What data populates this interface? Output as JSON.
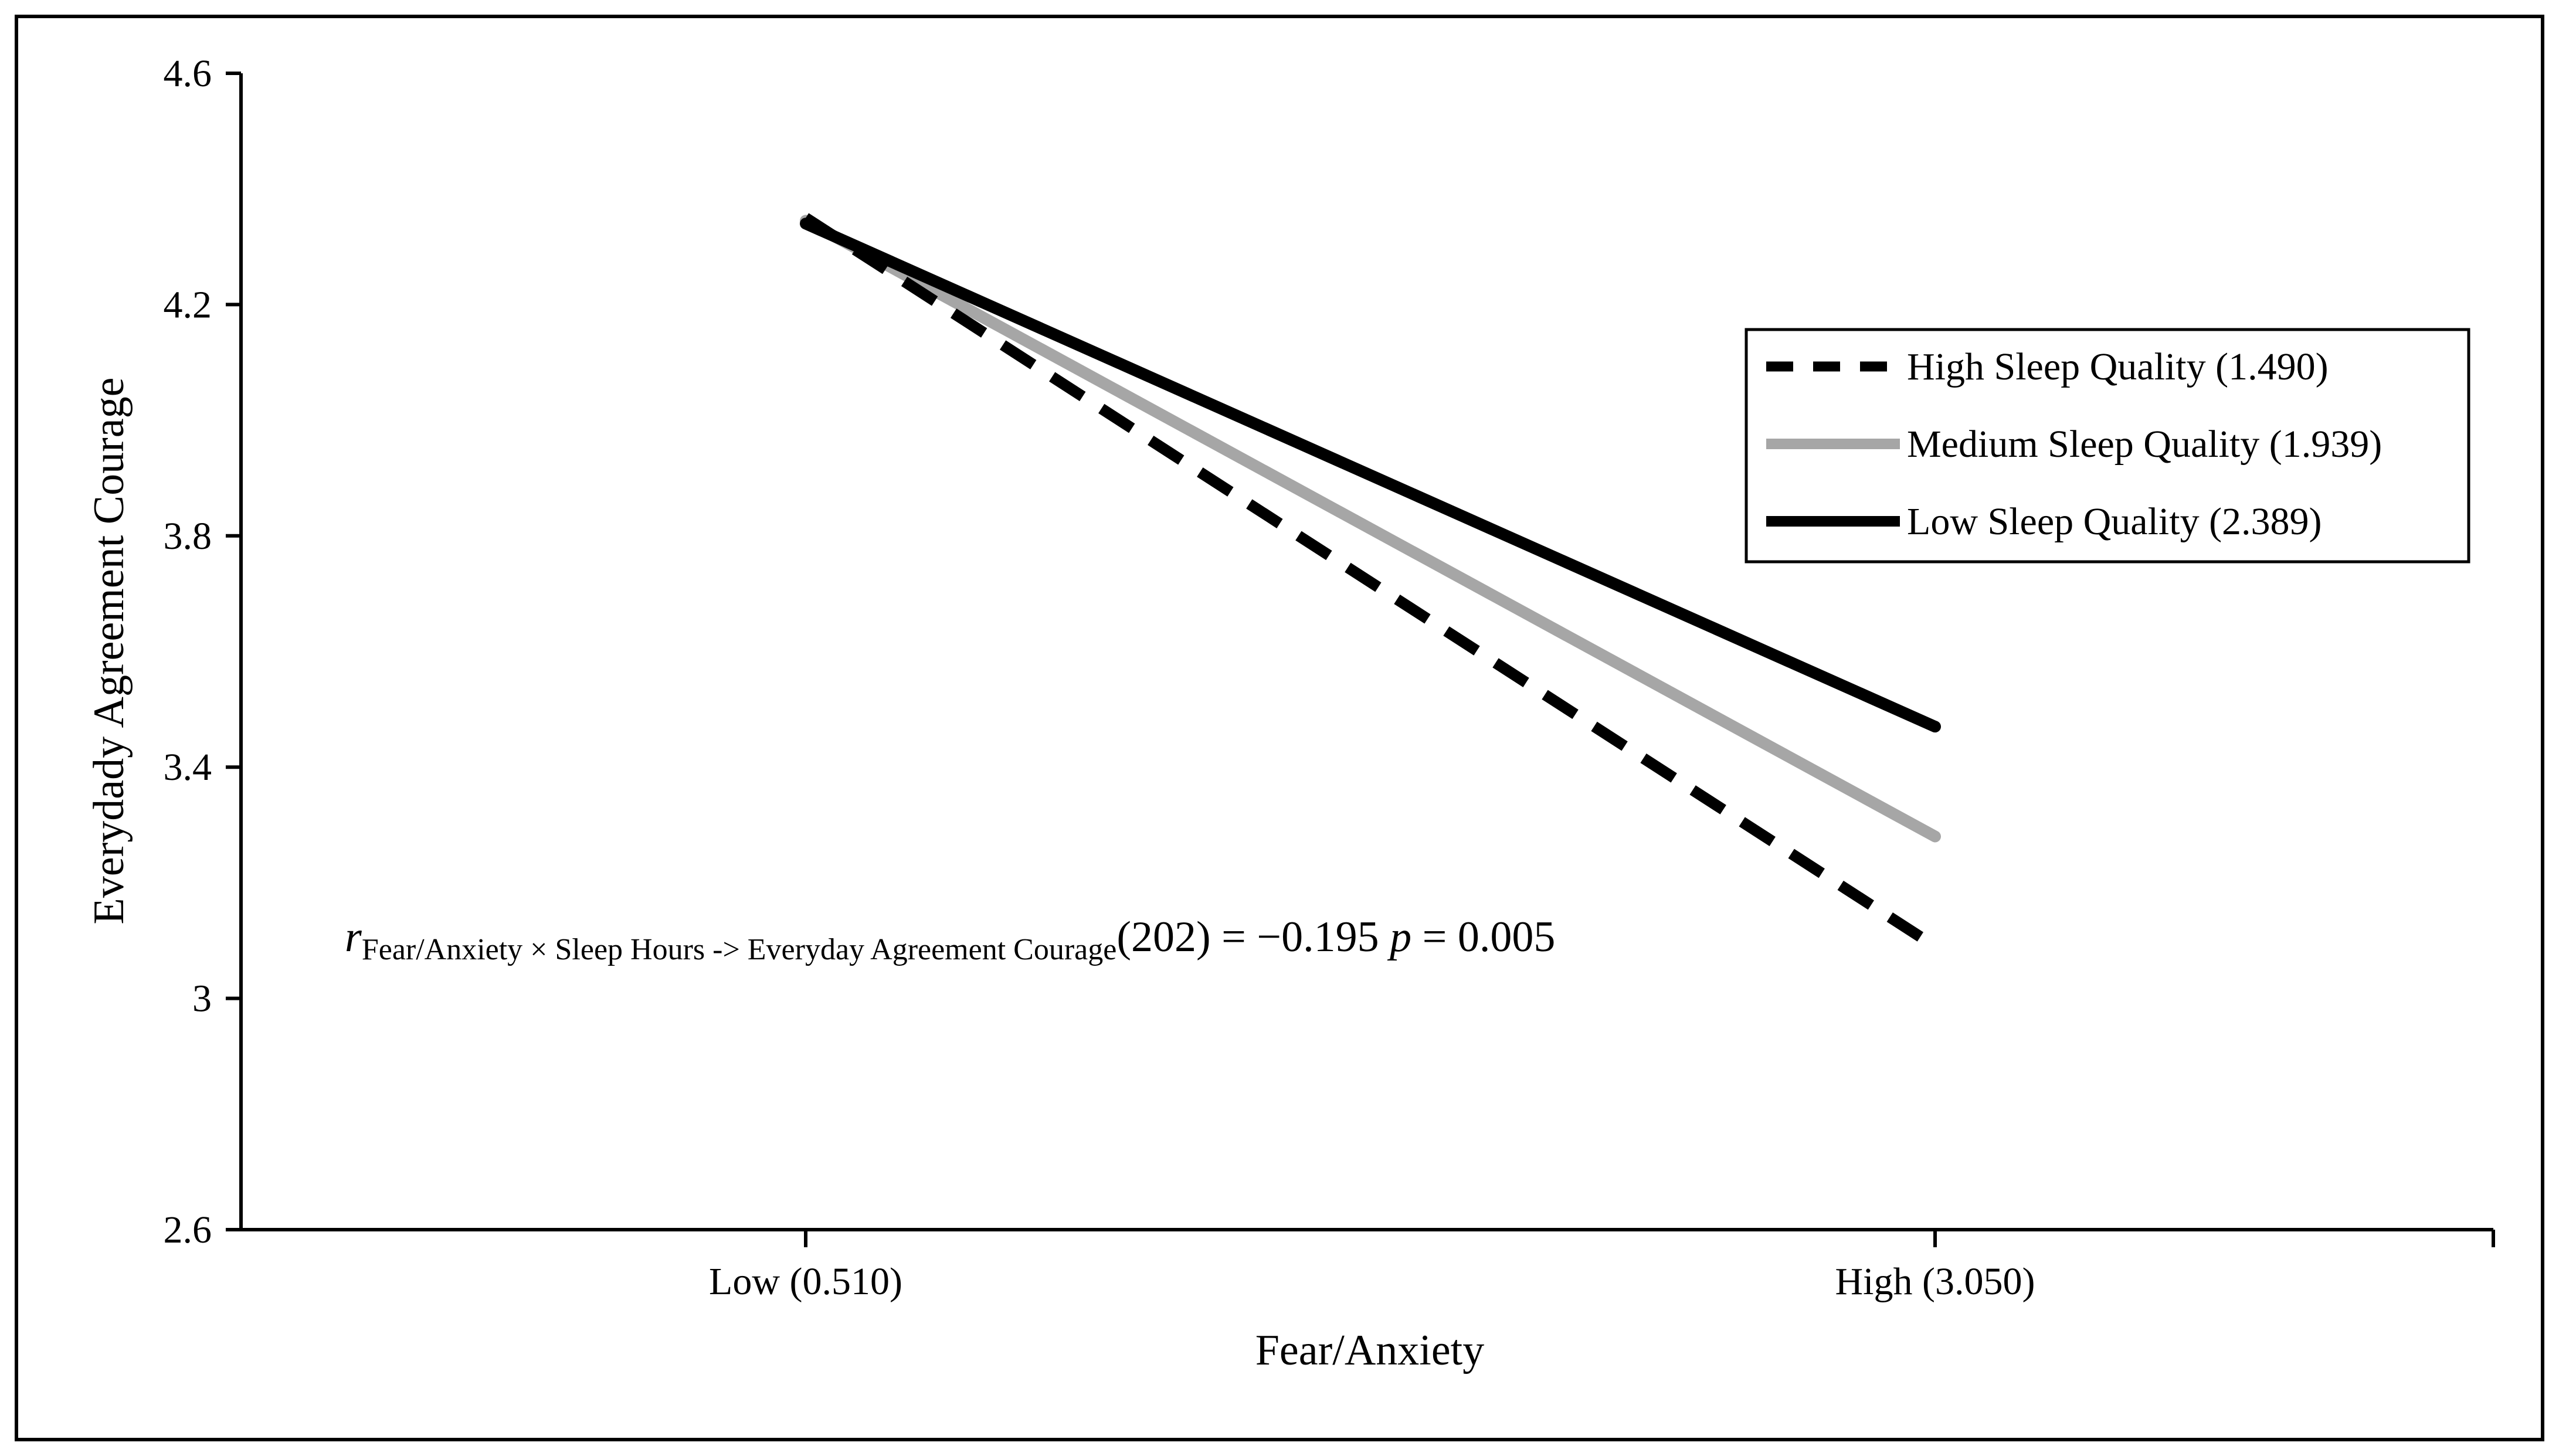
{
  "chart_data": {
    "type": "line",
    "title": "",
    "xlabel": "Fear/Anxiety",
    "ylabel": "Everydady Agreement Courage",
    "categories": [
      "Low (0.510)",
      "High (3.050)"
    ],
    "ylim": [
      2.6,
      4.6
    ],
    "yticks": [
      "2.6",
      "3",
      "3.4",
      "3.8",
      "4.2",
      "4.6"
    ],
    "grid": false,
    "legend_position": "top-right",
    "series": [
      {
        "name": "High Sleep Quality (1.490)",
        "values": [
          4.35,
          3.09
        ],
        "style": "dashed",
        "color": "#000000"
      },
      {
        "name": "Medium Sleep Quality (1.939)",
        "values": [
          4.345,
          3.28
        ],
        "style": "solid",
        "color": "#a6a6a6"
      },
      {
        "name": "Low Sleep Quality (2.389)",
        "values": [
          4.34,
          3.47
        ],
        "style": "solid",
        "color": "#000000"
      }
    ],
    "annotation": {
      "r_symbol": "r",
      "subscript": "Fear/Anxiety × Sleep Hours -> Everyday Agreement Courage",
      "stat": "(202) = −0.195 ",
      "p_symbol": "p",
      "p_value": " = 0.005"
    }
  }
}
